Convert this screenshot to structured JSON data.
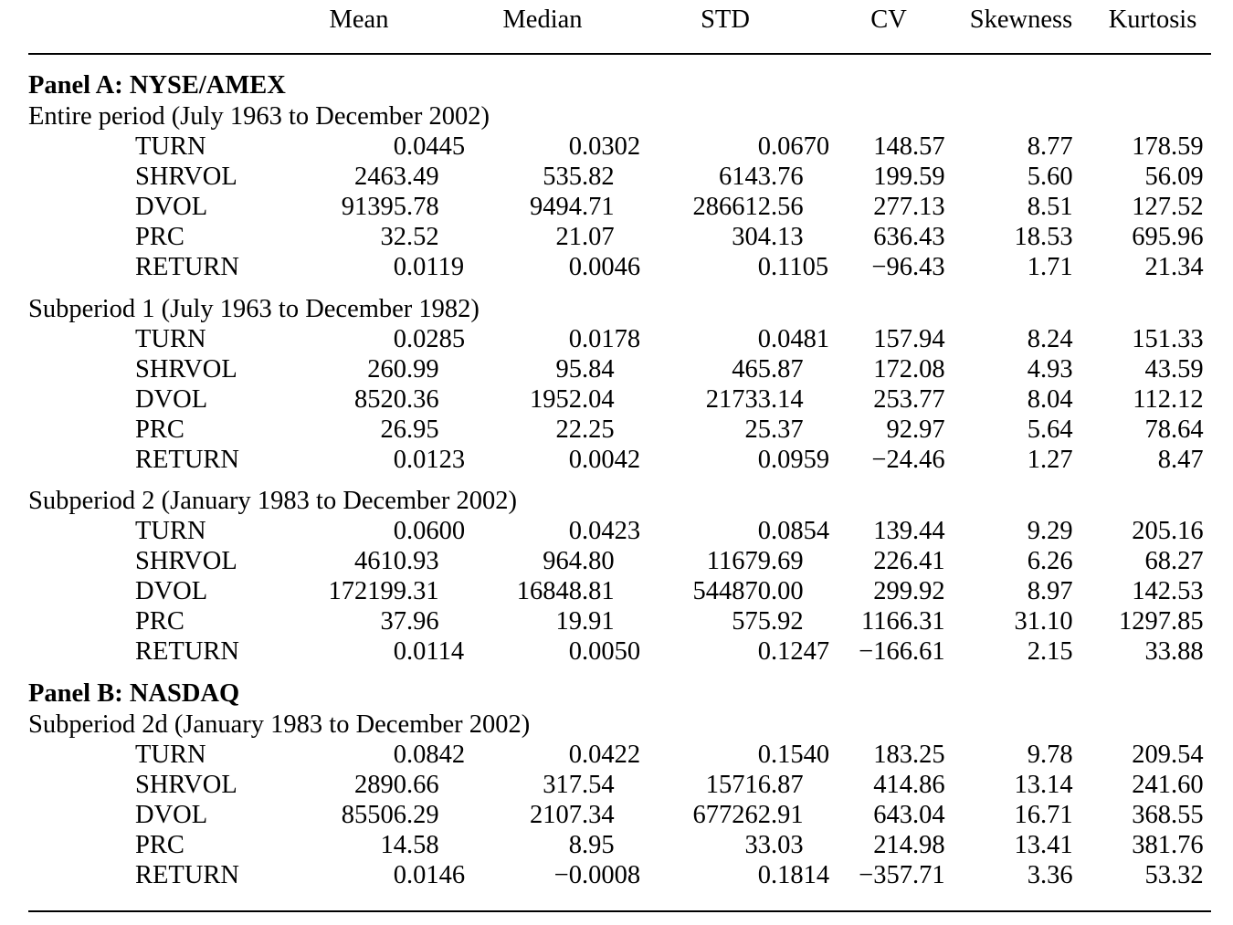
{
  "table": {
    "columns": [
      "Mean",
      "Median",
      "STD",
      "CV",
      "Skewness",
      "Kurtosis"
    ],
    "panels": [
      {
        "title": "Panel A: NYSE/AMEX",
        "groups": [
          {
            "period": "Entire period (July 1963 to December 2002)",
            "rows": [
              {
                "name": "TURN",
                "values": [
                  "0.0445",
                  "0.0302",
                  "0.0670",
                  "148.57",
                  "8.77",
                  "178.59"
                ]
              },
              {
                "name": "SHRVOL",
                "values": [
                  "2463.49",
                  "535.82",
                  "6143.76",
                  "199.59",
                  "5.60",
                  "56.09"
                ]
              },
              {
                "name": "DVOL",
                "values": [
                  "91395.78",
                  "9494.71",
                  "286612.56",
                  "277.13",
                  "8.51",
                  "127.52"
                ]
              },
              {
                "name": "PRC",
                "values": [
                  "32.52",
                  "21.07",
                  "304.13",
                  "636.43",
                  "18.53",
                  "695.96"
                ]
              },
              {
                "name": "RETURN",
                "values": [
                  "0.0119",
                  "0.0046",
                  "0.1105",
                  "−96.43",
                  "1.71",
                  "21.34"
                ]
              }
            ]
          },
          {
            "period": "Subperiod 1 (July 1963 to December 1982)",
            "rows": [
              {
                "name": "TURN",
                "values": [
                  "0.0285",
                  "0.0178",
                  "0.0481",
                  "157.94",
                  "8.24",
                  "151.33"
                ]
              },
              {
                "name": "SHRVOL",
                "values": [
                  "260.99",
                  "95.84",
                  "465.87",
                  "172.08",
                  "4.93",
                  "43.59"
                ]
              },
              {
                "name": "DVOL",
                "values": [
                  "8520.36",
                  "1952.04",
                  "21733.14",
                  "253.77",
                  "8.04",
                  "112.12"
                ]
              },
              {
                "name": "PRC",
                "values": [
                  "26.95",
                  "22.25",
                  "25.37",
                  "92.97",
                  "5.64",
                  "78.64"
                ]
              },
              {
                "name": "RETURN",
                "values": [
                  "0.0123",
                  "0.0042",
                  "0.0959",
                  "−24.46",
                  "1.27",
                  "8.47"
                ]
              }
            ]
          },
          {
            "period": "Subperiod 2 (January 1983 to December 2002)",
            "rows": [
              {
                "name": "TURN",
                "values": [
                  "0.0600",
                  "0.0423",
                  "0.0854",
                  "139.44",
                  "9.29",
                  "205.16"
                ]
              },
              {
                "name": "SHRVOL",
                "values": [
                  "4610.93",
                  "964.80",
                  "11679.69",
                  "226.41",
                  "6.26",
                  "68.27"
                ]
              },
              {
                "name": "DVOL",
                "values": [
                  "172199.31",
                  "16848.81",
                  "544870.00",
                  "299.92",
                  "8.97",
                  "142.53"
                ]
              },
              {
                "name": "PRC",
                "values": [
                  "37.96",
                  "19.91",
                  "575.92",
                  "1166.31",
                  "31.10",
                  "1297.85"
                ]
              },
              {
                "name": "RETURN",
                "values": [
                  "0.0114",
                  "0.0050",
                  "0.1247",
                  "−166.61",
                  "2.15",
                  "33.88"
                ]
              }
            ]
          }
        ]
      },
      {
        "title": "Panel B: NASDAQ",
        "groups": [
          {
            "period": "Subperiod 2d (January 1983 to December 2002)",
            "rows": [
              {
                "name": "TURN",
                "values": [
                  "0.0842",
                  "0.0422",
                  "0.1540",
                  "183.25",
                  "9.78",
                  "209.54"
                ]
              },
              {
                "name": "SHRVOL",
                "values": [
                  "2890.66",
                  "317.54",
                  "15716.87",
                  "414.86",
                  "13.14",
                  "241.60"
                ]
              },
              {
                "name": "DVOL",
                "values": [
                  "85506.29",
                  "2107.34",
                  "677262.91",
                  "643.04",
                  "16.71",
                  "368.55"
                ]
              },
              {
                "name": "PRC",
                "values": [
                  "14.58",
                  "8.95",
                  "33.03",
                  "214.98",
                  "13.41",
                  "381.76"
                ]
              },
              {
                "name": "RETURN",
                "values": [
                  "0.0146",
                  "−0.0008",
                  "0.1814",
                  "−357.71",
                  "3.36",
                  "53.32"
                ]
              }
            ]
          }
        ]
      }
    ]
  }
}
